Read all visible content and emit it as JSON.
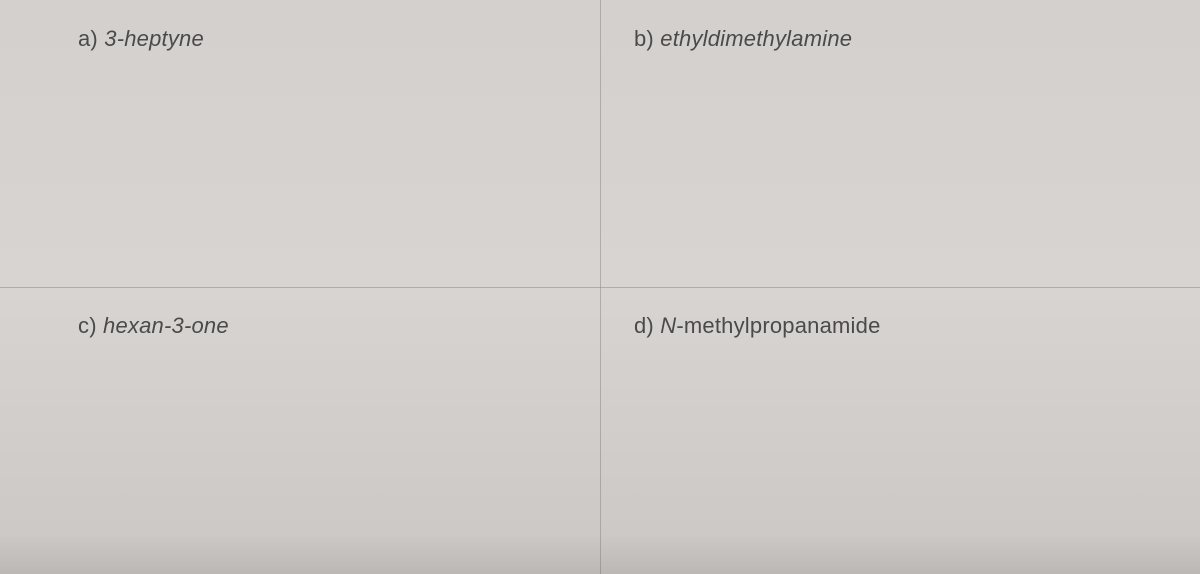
{
  "grid": {
    "layout": "2x2",
    "background_color": "#d4d0ce",
    "divider_color": "#8e8a88",
    "text_color": "#4a4a4a",
    "font_size_pt": 16,
    "cells": {
      "a": {
        "prefix": "a) ",
        "compound": "3-heptyne"
      },
      "b": {
        "prefix": "b) ",
        "compound": "ethyldimethylamine"
      },
      "c": {
        "prefix": "c) ",
        "compound": "hexan-3-one"
      },
      "d": {
        "prefix": "d) ",
        "n_prefix": "N",
        "compound": "-methylpropanamide"
      }
    }
  }
}
